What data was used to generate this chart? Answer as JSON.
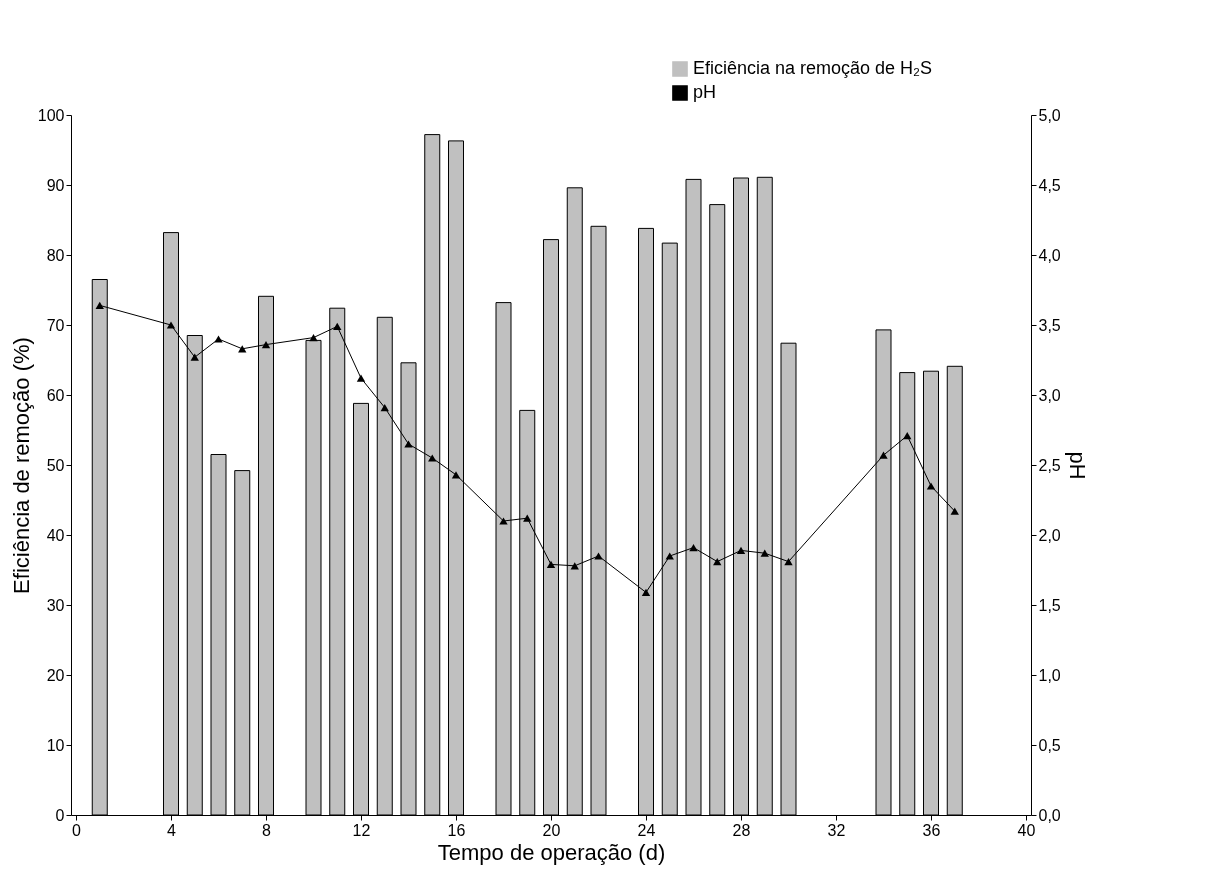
{
  "chart_data": {
    "type": "bar",
    "xlabel": "Tempo de operação (d)",
    "ylabel": "Eficiência de remoção (%)",
    "y2label": "pH",
    "x": [
      1,
      4,
      5,
      6,
      7,
      8,
      10,
      11,
      12,
      13,
      14,
      15,
      16,
      18,
      19,
      20,
      21,
      22,
      24,
      25,
      26,
      27,
      28,
      29,
      30,
      34,
      35,
      36,
      37
    ],
    "series": [
      {
        "name": "Eficiência na remoção de H₂S",
        "color": "#c0c0c0",
        "values": [
          76.5,
          83.2,
          68.5,
          51.5,
          49.2,
          74.1,
          67.8,
          72.4,
          58.8,
          71.1,
          64.6,
          97.2,
          96.3,
          73.2,
          57.8,
          82.2,
          89.6,
          84.1,
          83.8,
          81.7,
          90.8,
          87.2,
          91.0,
          91.1,
          67.4,
          69.3,
          63.2,
          63.4,
          64.1
        ]
      },
      {
        "name": "pH",
        "type": "line",
        "axis": "y2",
        "color": "#000000",
        "marker": "triangle",
        "values": [
          3.64,
          3.5,
          3.27,
          3.4,
          3.33,
          3.36,
          3.41,
          3.49,
          3.12,
          2.91,
          2.65,
          2.55,
          2.43,
          2.1,
          2.12,
          1.79,
          1.78,
          1.85,
          1.59,
          1.85,
          1.91,
          1.81,
          1.89,
          1.87,
          1.81,
          2.57,
          2.71,
          2.35,
          2.17
        ]
      }
    ],
    "xlim": [
      0,
      40
    ],
    "xticks": [
      0,
      4,
      8,
      12,
      16,
      20,
      24,
      28,
      32,
      36,
      40
    ],
    "ylim": [
      0,
      100
    ],
    "yticks": [
      0,
      10,
      20,
      30,
      40,
      50,
      60,
      70,
      80,
      90,
      100
    ],
    "y2lim": [
      0,
      5
    ],
    "y2ticks": [
      {
        "value": 0,
        "label": "0,0"
      },
      {
        "value": 0.5,
        "label": "0,5"
      },
      {
        "value": 1,
        "label": "1,0"
      },
      {
        "value": 1.5,
        "label": "1,5"
      },
      {
        "value": 2,
        "label": "2,0"
      },
      {
        "value": 2.5,
        "label": "2,5"
      },
      {
        "value": 3,
        "label": "3,0"
      },
      {
        "value": 3.5,
        "label": "3,5"
      },
      {
        "value": 4,
        "label": "4,0"
      },
      {
        "value": 4.5,
        "label": "4,5"
      },
      {
        "value": 5,
        "label": "5,0"
      }
    ],
    "grid": false,
    "legend": "top right"
  }
}
